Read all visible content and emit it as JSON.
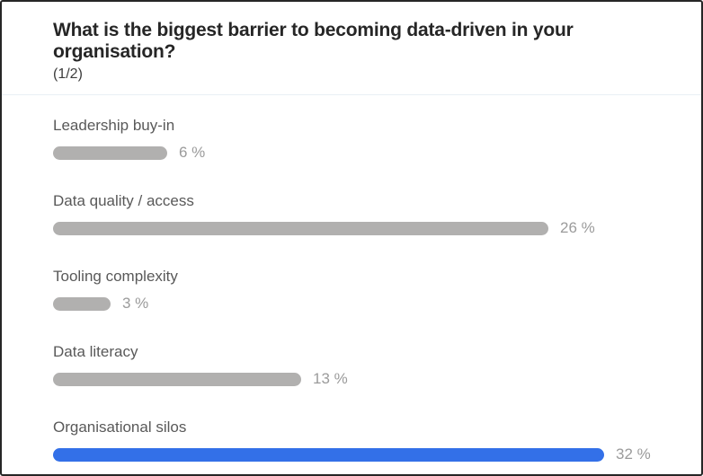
{
  "colors": {
    "accent": "#3370e8",
    "bar_default": "#b1b0af",
    "title_text": "#262626",
    "label_text": "#595959",
    "percent_text": "#9b9b9b",
    "divider": "#e9eff5",
    "card_border": "#262626"
  },
  "header": {
    "title": "What is the biggest barrier to becoming data-driven in your organisation?",
    "page_indicator": "(1/2)"
  },
  "options": [
    {
      "label": "Leadership buy-in",
      "value": 6,
      "percent_label": "6 %",
      "highlighted": false
    },
    {
      "label": "Data quality / access",
      "value": 26,
      "percent_label": "26 %",
      "highlighted": false
    },
    {
      "label": "Tooling complexity",
      "value": 3,
      "percent_label": "3 %",
      "highlighted": false
    },
    {
      "label": "Data literacy",
      "value": 13,
      "percent_label": "13 %",
      "highlighted": false
    },
    {
      "label": "Organisational silos",
      "value": 32,
      "percent_label": "32 %",
      "highlighted": true
    }
  ],
  "chart_data": {
    "type": "bar",
    "orientation": "horizontal",
    "title": "What is the biggest barrier to becoming data-driven in your organisation? (1/2)",
    "categories": [
      "Leadership buy-in",
      "Data quality / access",
      "Tooling complexity",
      "Data literacy",
      "Organisational silos"
    ],
    "values": [
      6,
      26,
      3,
      13,
      32
    ],
    "value_suffix": " %",
    "xlabel": "",
    "ylabel": "",
    "xlim": [
      0,
      32
    ],
    "grid": false,
    "legend": false,
    "highlighted_category": "Organisational silos",
    "highlight_color": "#3370e8",
    "default_color": "#b1b0af"
  }
}
